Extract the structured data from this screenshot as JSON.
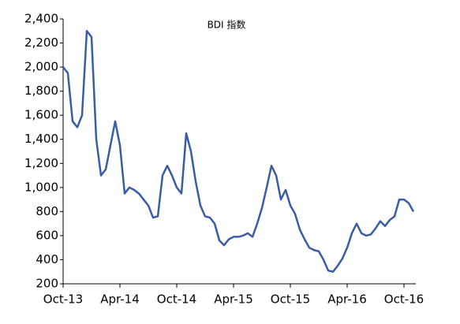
{
  "chart_data": {
    "type": "line",
    "title": "BDI 指数",
    "categories": [
      "Oct-13",
      null,
      null,
      null,
      null,
      null,
      null,
      null,
      null,
      null,
      null,
      null,
      "Apr-14",
      null,
      null,
      null,
      null,
      null,
      null,
      null,
      null,
      null,
      null,
      null,
      "Oct-14",
      null,
      null,
      null,
      null,
      null,
      null,
      null,
      null,
      null,
      null,
      null,
      "Apr-15",
      null,
      null,
      null,
      null,
      null,
      null,
      null,
      null,
      null,
      null,
      null,
      "Oct-15",
      null,
      null,
      null,
      null,
      null,
      null,
      null,
      null,
      null,
      null,
      null,
      "Apr-16",
      null,
      null,
      null,
      null,
      null,
      null,
      null,
      null,
      null,
      null,
      null,
      "Oct-16",
      null,
      null
    ],
    "values": [
      2000,
      1950,
      1550,
      1500,
      1600,
      2300,
      2250,
      1400,
      1100,
      1150,
      1350,
      1550,
      1350,
      950,
      1000,
      980,
      950,
      900,
      850,
      750,
      760,
      1100,
      1180,
      1100,
      1000,
      950,
      1450,
      1300,
      1050,
      850,
      760,
      750,
      700,
      560,
      520,
      570,
      590,
      590,
      600,
      620,
      590,
      700,
      830,
      1000,
      1180,
      1100,
      900,
      980,
      850,
      780,
      650,
      570,
      500,
      480,
      470,
      400,
      310,
      300,
      350,
      410,
      500,
      620,
      700,
      620,
      600,
      610,
      660,
      720,
      680,
      730,
      760,
      900,
      900,
      870,
      800
    ],
    "color": "#3a5ca6",
    "ylim": [
      200,
      2400
    ],
    "yticks": [
      200,
      400,
      600,
      800,
      {
        "value": 1000,
        "label": "1,000"
      },
      {
        "value": 1200,
        "label": "1,200"
      },
      {
        "value": 1400,
        "label": "1,400"
      },
      {
        "value": 1600,
        "label": "1,600"
      },
      {
        "value": 1800,
        "label": "1,800"
      },
      {
        "value": 2000,
        "label": "2,000"
      },
      {
        "value": 2200,
        "label": "2,200"
      },
      {
        "value": 2400,
        "label": "2,400"
      }
    ],
    "grid": false
  }
}
